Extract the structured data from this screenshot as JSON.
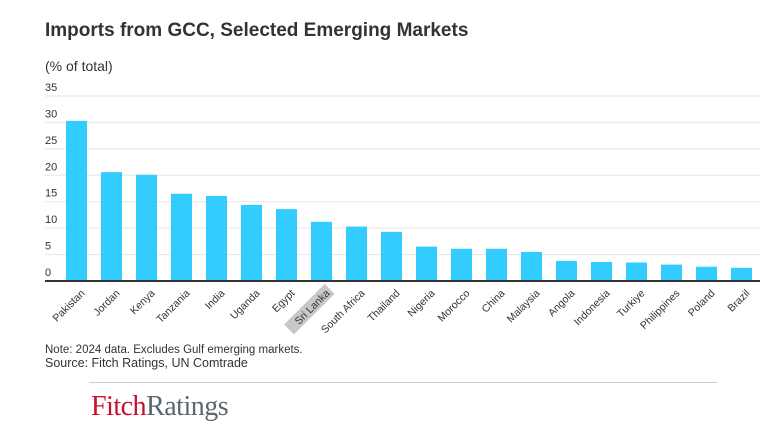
{
  "chart_data": {
    "type": "bar",
    "title": "Imports from GCC, Selected Emerging Markets",
    "ylabel": "(% of total)",
    "xlabel": "",
    "ylim": [
      0,
      35
    ],
    "yticks": [
      0,
      5,
      10,
      15,
      20,
      25,
      30,
      35
    ],
    "grid": true,
    "categories": [
      "Pakistan",
      "Jordan",
      "Kenya",
      "Tanzania",
      "India",
      "Uganda",
      "Egypt",
      "Sri Lanka",
      "South Africa",
      "Thailand",
      "Nigeria",
      "Morocco",
      "China",
      "Malaysia",
      "Angola",
      "Indonesia",
      "Turkiye",
      "Philippines",
      "Poland",
      "Brazil"
    ],
    "values": [
      30.3,
      20.6,
      20.1,
      16.5,
      16.1,
      14.4,
      13.6,
      11.2,
      10.3,
      9.3,
      6.5,
      6.1,
      6.1,
      5.5,
      3.8,
      3.6,
      3.5,
      3.1,
      2.7,
      2.5
    ],
    "highlighted_category": "Sri Lanka",
    "colors": {
      "bar": "#33ccff",
      "axis": "#333333",
      "grid": "#e6e6e6",
      "highlight": "#c8c8c8"
    }
  },
  "footer": {
    "note": "Note: 2024 data. Excludes Gulf emerging markets.",
    "source": "Source: Fitch Ratings, UN Comtrade",
    "logo": {
      "part1": "Fitch",
      "part2": "Ratings",
      "colors": {
        "fitch": "#c8102e",
        "ratings": "#5b6770"
      }
    }
  }
}
